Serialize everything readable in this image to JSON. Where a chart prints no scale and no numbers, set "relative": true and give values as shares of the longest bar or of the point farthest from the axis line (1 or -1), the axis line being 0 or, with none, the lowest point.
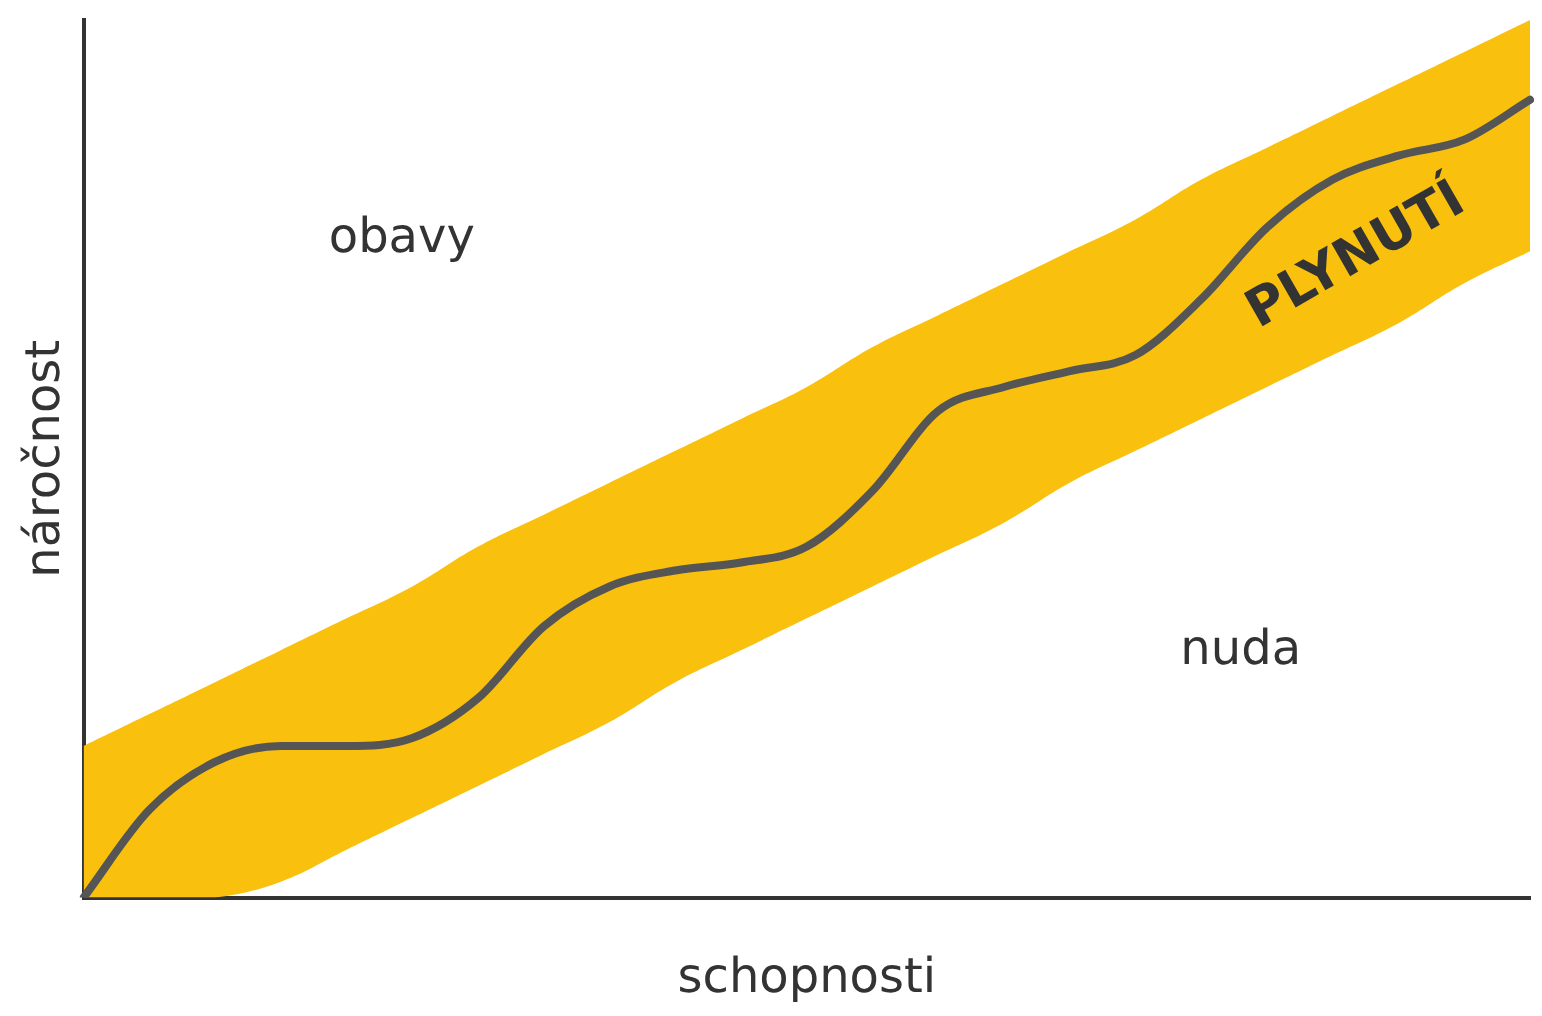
{
  "chart_data": {
    "type": "line",
    "relative": true,
    "xlabel": "schopnosti",
    "ylabel": "náročnost",
    "legend": false,
    "grid": false,
    "marker": "none",
    "line_style": "solid",
    "categories": [
      null,
      null,
      null,
      null,
      null,
      null,
      null,
      null,
      null,
      null,
      null,
      null,
      null,
      null,
      null,
      null,
      null,
      null,
      null,
      null,
      null,
      null,
      null
    ],
    "series": [
      {
        "color": "#555555",
        "values": [
          0,
          0.11,
          0.17,
          0.19,
          0.19,
          0.2,
          0.25,
          0.34,
          0.39,
          0.41,
          0.42,
          0.44,
          0.51,
          0.61,
          0.64,
          0.66,
          0.68,
          0.75,
          0.84,
          0.9,
          0.93,
          0.95,
          1
        ],
        "lower": [
          0,
          0,
          0,
          0.02,
          0.06,
          0.1,
          0.14,
          0.18,
          0.22,
          0.27,
          0.31,
          0.35,
          0.39,
          0.43,
          0.47,
          0.52,
          0.56,
          0.6,
          0.64,
          0.68,
          0.72,
          0.77,
          0.81
        ],
        "upper": [
          0.19,
          0.23,
          0.27,
          0.31,
          0.35,
          0.39,
          0.44,
          0.48,
          0.52,
          0.56,
          0.6,
          0.64,
          0.69,
          0.73,
          0.77,
          0.81,
          0.85,
          0.9,
          0.94,
          0.98,
          1.02,
          1.06,
          1.1
        ]
      }
    ],
    "annotations": [
      "obavy",
      "nuda",
      "PLYNUTÍ"
    ]
  }
}
